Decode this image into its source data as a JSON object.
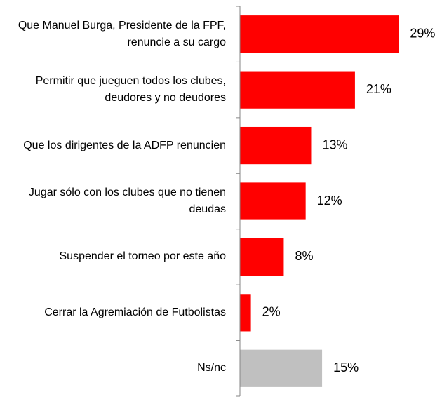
{
  "chart_data": {
    "type": "barh",
    "categories": [
      "Que Manuel Burga, Presidente de la FPF, renuncie a su cargo",
      "Permitir que jueguen todos los clubes, deudores y no deudores",
      "Que los dirigentes de la ADFP renuncien",
      "Jugar sólo con los clubes que no tienen deudas",
      "Suspender el torneo por este año",
      "Cerrar la Agremiación de Futbolistas",
      "Ns/nc"
    ],
    "values": [
      29,
      21,
      13,
      12,
      8,
      2,
      15
    ],
    "value_labels": [
      "29%",
      "21%",
      "13%",
      "12%",
      "8%",
      "2%",
      "15%"
    ],
    "colors": [
      "#ff0000",
      "#ff0000",
      "#ff0000",
      "#ff0000",
      "#ff0000",
      "#ff0000",
      "#c0c0c0"
    ],
    "xlim": [
      0,
      36
    ]
  }
}
